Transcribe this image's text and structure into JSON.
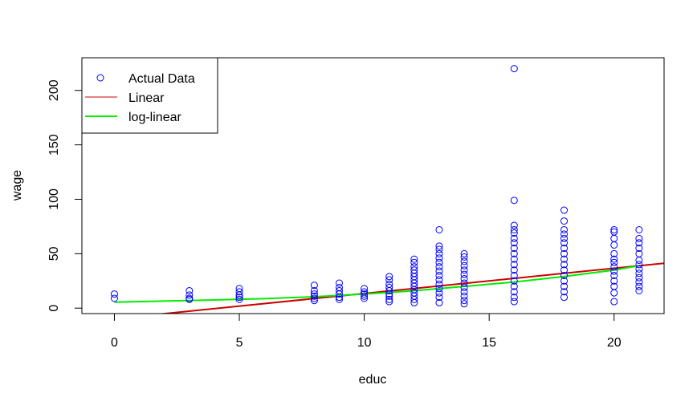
{
  "chart_data": {
    "type": "scatter",
    "title": "",
    "xlabel": "educ",
    "ylabel": "wage",
    "xlim": [
      -1.3,
      22
    ],
    "ylim": [
      -5,
      230
    ],
    "xticks": [
      0,
      5,
      10,
      15,
      20
    ],
    "yticks": [
      0,
      50,
      100,
      150,
      200
    ],
    "grid": false,
    "legend": {
      "placement": "top-left",
      "entries": [
        {
          "label": "Actual Data",
          "symbol": "circle",
          "color": "#0000ff"
        },
        {
          "label": "Linear",
          "symbol": "line",
          "color": "#cc0000"
        },
        {
          "label": "log-linear",
          "symbol": "line",
          "color": "#00ee00"
        }
      ]
    },
    "series": [
      {
        "name": "Actual Data",
        "kind": "points",
        "color": "#0000ff",
        "points": [
          {
            "x": 0,
            "y": 13
          },
          {
            "x": 0,
            "y": 9
          },
          {
            "x": 3,
            "y": 16
          },
          {
            "x": 3,
            "y": 12
          },
          {
            "x": 3,
            "y": 9
          },
          {
            "x": 3,
            "y": 8
          },
          {
            "x": 5,
            "y": 18
          },
          {
            "x": 5,
            "y": 15
          },
          {
            "x": 5,
            "y": 12
          },
          {
            "x": 5,
            "y": 10
          },
          {
            "x": 5,
            "y": 8
          },
          {
            "x": 8,
            "y": 21
          },
          {
            "x": 8,
            "y": 16
          },
          {
            "x": 8,
            "y": 13
          },
          {
            "x": 8,
            "y": 11
          },
          {
            "x": 8,
            "y": 9
          },
          {
            "x": 8,
            "y": 7
          },
          {
            "x": 9,
            "y": 23
          },
          {
            "x": 9,
            "y": 19
          },
          {
            "x": 9,
            "y": 16
          },
          {
            "x": 9,
            "y": 13
          },
          {
            "x": 9,
            "y": 10
          },
          {
            "x": 9,
            "y": 8
          },
          {
            "x": 10,
            "y": 18
          },
          {
            "x": 10,
            "y": 15
          },
          {
            "x": 10,
            "y": 13
          },
          {
            "x": 10,
            "y": 11
          },
          {
            "x": 10,
            "y": 9
          },
          {
            "x": 11,
            "y": 29
          },
          {
            "x": 11,
            "y": 26
          },
          {
            "x": 11,
            "y": 22
          },
          {
            "x": 11,
            "y": 19
          },
          {
            "x": 11,
            "y": 16
          },
          {
            "x": 11,
            "y": 13
          },
          {
            "x": 11,
            "y": 11
          },
          {
            "x": 11,
            "y": 8
          },
          {
            "x": 11,
            "y": 6
          },
          {
            "x": 12,
            "y": 45
          },
          {
            "x": 12,
            "y": 42
          },
          {
            "x": 12,
            "y": 38
          },
          {
            "x": 12,
            "y": 35
          },
          {
            "x": 12,
            "y": 32
          },
          {
            "x": 12,
            "y": 29
          },
          {
            "x": 12,
            "y": 26
          },
          {
            "x": 12,
            "y": 23
          },
          {
            "x": 12,
            "y": 20
          },
          {
            "x": 12,
            "y": 17
          },
          {
            "x": 12,
            "y": 14
          },
          {
            "x": 12,
            "y": 11
          },
          {
            "x": 12,
            "y": 8
          },
          {
            "x": 12,
            "y": 5
          },
          {
            "x": 13,
            "y": 72
          },
          {
            "x": 13,
            "y": 57
          },
          {
            "x": 13,
            "y": 54
          },
          {
            "x": 13,
            "y": 50
          },
          {
            "x": 13,
            "y": 46
          },
          {
            "x": 13,
            "y": 42
          },
          {
            "x": 13,
            "y": 38
          },
          {
            "x": 13,
            "y": 34
          },
          {
            "x": 13,
            "y": 30
          },
          {
            "x": 13,
            "y": 26
          },
          {
            "x": 13,
            "y": 22
          },
          {
            "x": 13,
            "y": 18
          },
          {
            "x": 13,
            "y": 14
          },
          {
            "x": 13,
            "y": 10
          },
          {
            "x": 13,
            "y": 5
          },
          {
            "x": 14,
            "y": 50
          },
          {
            "x": 14,
            "y": 47
          },
          {
            "x": 14,
            "y": 43
          },
          {
            "x": 14,
            "y": 39
          },
          {
            "x": 14,
            "y": 35
          },
          {
            "x": 14,
            "y": 31
          },
          {
            "x": 14,
            "y": 27
          },
          {
            "x": 14,
            "y": 23
          },
          {
            "x": 14,
            "y": 19
          },
          {
            "x": 14,
            "y": 15
          },
          {
            "x": 14,
            "y": 11
          },
          {
            "x": 14,
            "y": 7
          },
          {
            "x": 14,
            "y": 4
          },
          {
            "x": 16,
            "y": 220
          },
          {
            "x": 16,
            "y": 99
          },
          {
            "x": 16,
            "y": 76
          },
          {
            "x": 16,
            "y": 72
          },
          {
            "x": 16,
            "y": 69
          },
          {
            "x": 16,
            "y": 64
          },
          {
            "x": 16,
            "y": 60
          },
          {
            "x": 16,
            "y": 55
          },
          {
            "x": 16,
            "y": 50
          },
          {
            "x": 16,
            "y": 45
          },
          {
            "x": 16,
            "y": 40
          },
          {
            "x": 16,
            "y": 35
          },
          {
            "x": 16,
            "y": 30
          },
          {
            "x": 16,
            "y": 25
          },
          {
            "x": 16,
            "y": 20
          },
          {
            "x": 16,
            "y": 15
          },
          {
            "x": 16,
            "y": 10
          },
          {
            "x": 16,
            "y": 6
          },
          {
            "x": 18,
            "y": 90
          },
          {
            "x": 18,
            "y": 80
          },
          {
            "x": 18,
            "y": 72
          },
          {
            "x": 18,
            "y": 68
          },
          {
            "x": 18,
            "y": 64
          },
          {
            "x": 18,
            "y": 60
          },
          {
            "x": 18,
            "y": 55
          },
          {
            "x": 18,
            "y": 50
          },
          {
            "x": 18,
            "y": 45
          },
          {
            "x": 18,
            "y": 40
          },
          {
            "x": 18,
            "y": 35
          },
          {
            "x": 18,
            "y": 30
          },
          {
            "x": 18,
            "y": 25
          },
          {
            "x": 18,
            "y": 20
          },
          {
            "x": 18,
            "y": 15
          },
          {
            "x": 18,
            "y": 10
          },
          {
            "x": 20,
            "y": 72
          },
          {
            "x": 20,
            "y": 70
          },
          {
            "x": 20,
            "y": 64
          },
          {
            "x": 20,
            "y": 58
          },
          {
            "x": 20,
            "y": 50
          },
          {
            "x": 20,
            "y": 45
          },
          {
            "x": 20,
            "y": 42
          },
          {
            "x": 20,
            "y": 38
          },
          {
            "x": 20,
            "y": 34
          },
          {
            "x": 20,
            "y": 30
          },
          {
            "x": 20,
            "y": 25
          },
          {
            "x": 20,
            "y": 20
          },
          {
            "x": 20,
            "y": 14
          },
          {
            "x": 20,
            "y": 6
          },
          {
            "x": 21,
            "y": 72
          },
          {
            "x": 21,
            "y": 64
          },
          {
            "x": 21,
            "y": 60
          },
          {
            "x": 21,
            "y": 55
          },
          {
            "x": 21,
            "y": 50
          },
          {
            "x": 21,
            "y": 44
          },
          {
            "x": 21,
            "y": 40
          },
          {
            "x": 21,
            "y": 36
          },
          {
            "x": 21,
            "y": 32
          },
          {
            "x": 21,
            "y": 28
          },
          {
            "x": 21,
            "y": 24
          },
          {
            "x": 21,
            "y": 20
          },
          {
            "x": 21,
            "y": 16
          }
        ]
      },
      {
        "name": "Linear",
        "kind": "line",
        "color": "#cc0000",
        "points": [
          {
            "x": -1.3,
            "y": -12.7
          },
          {
            "x": 22,
            "y": 41.3
          }
        ]
      },
      {
        "name": "log-linear",
        "kind": "line",
        "color": "#00ee00",
        "points": [
          {
            "x": 0,
            "y": 5.5
          },
          {
            "x": 2,
            "y": 6.5
          },
          {
            "x": 4,
            "y": 7.5
          },
          {
            "x": 6,
            "y": 8.7
          },
          {
            "x": 8,
            "y": 10.5
          },
          {
            "x": 10,
            "y": 13
          },
          {
            "x": 12,
            "y": 16
          },
          {
            "x": 14,
            "y": 20
          },
          {
            "x": 16,
            "y": 24
          },
          {
            "x": 18,
            "y": 29
          },
          {
            "x": 20,
            "y": 35
          },
          {
            "x": 21,
            "y": 39
          }
        ]
      }
    ]
  }
}
